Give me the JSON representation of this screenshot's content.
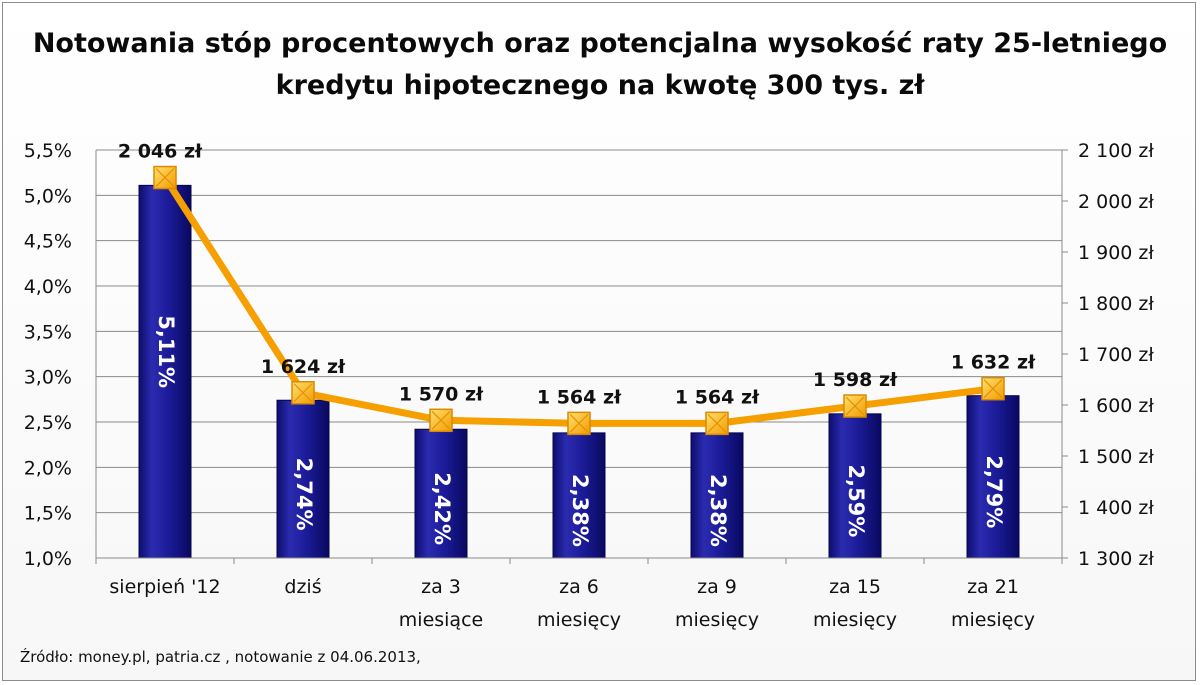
{
  "chart_data": {
    "type": "bar+line",
    "title_line1": "Notowania stóp procentowych oraz potencjalna wysokość raty 25-letniego",
    "title_line2": "kredytu hipotecznego na kwotę 300 tys. zł",
    "categories": [
      [
        "sierpień '12"
      ],
      [
        "dziś"
      ],
      [
        "za 3",
        "miesiące"
      ],
      [
        "za 6",
        "miesięcy"
      ],
      [
        "za 9",
        "miesięcy"
      ],
      [
        "za 15",
        "miesięcy"
      ],
      [
        "za 21",
        "miesięcy"
      ]
    ],
    "bars": {
      "axis": "left",
      "values": [
        5.11,
        2.74,
        2.42,
        2.38,
        2.38,
        2.59,
        2.79
      ],
      "labels": [
        "5,11%",
        "2,74%",
        "2,42%",
        "2,38%",
        "2,38%",
        "2,59%",
        "2,79%"
      ],
      "color": "#1a1a8c"
    },
    "line": {
      "axis": "right",
      "values": [
        2046,
        1624,
        1570,
        1564,
        1564,
        1598,
        1632
      ],
      "labels": [
        "2 046 zł",
        "1 624 zł",
        "1 570 zł",
        "1 564 zł",
        "1 564 zł",
        "1 598 zł",
        "1 632 zł"
      ],
      "color": "#f5a000"
    },
    "left_axis": {
      "ylim": [
        1.0,
        5.5
      ],
      "ticks": [
        1.0,
        1.5,
        2.0,
        2.5,
        3.0,
        3.5,
        4.0,
        4.5,
        5.0,
        5.5
      ],
      "tick_labels": [
        "1,0%",
        "1,5%",
        "2,0%",
        "2,5%",
        "3,0%",
        "3,5%",
        "4,0%",
        "4,5%",
        "5,0%",
        "5,5%"
      ]
    },
    "right_axis": {
      "ylim": [
        1300,
        2100
      ],
      "ticks": [
        1300,
        1400,
        1500,
        1600,
        1700,
        1800,
        1900,
        2000,
        2100
      ],
      "tick_labels": [
        "1 300 zł",
        "1 400 zł",
        "1 500 zł",
        "1 600 zł",
        "1 700 zł",
        "1 800 zł",
        "1 900 zł",
        "2 000 zł",
        "2 100 zł"
      ]
    },
    "grid": "horizontal"
  },
  "source_text": "Źródło: money.pl, patria.cz , notowanie z 04.06.2013,"
}
